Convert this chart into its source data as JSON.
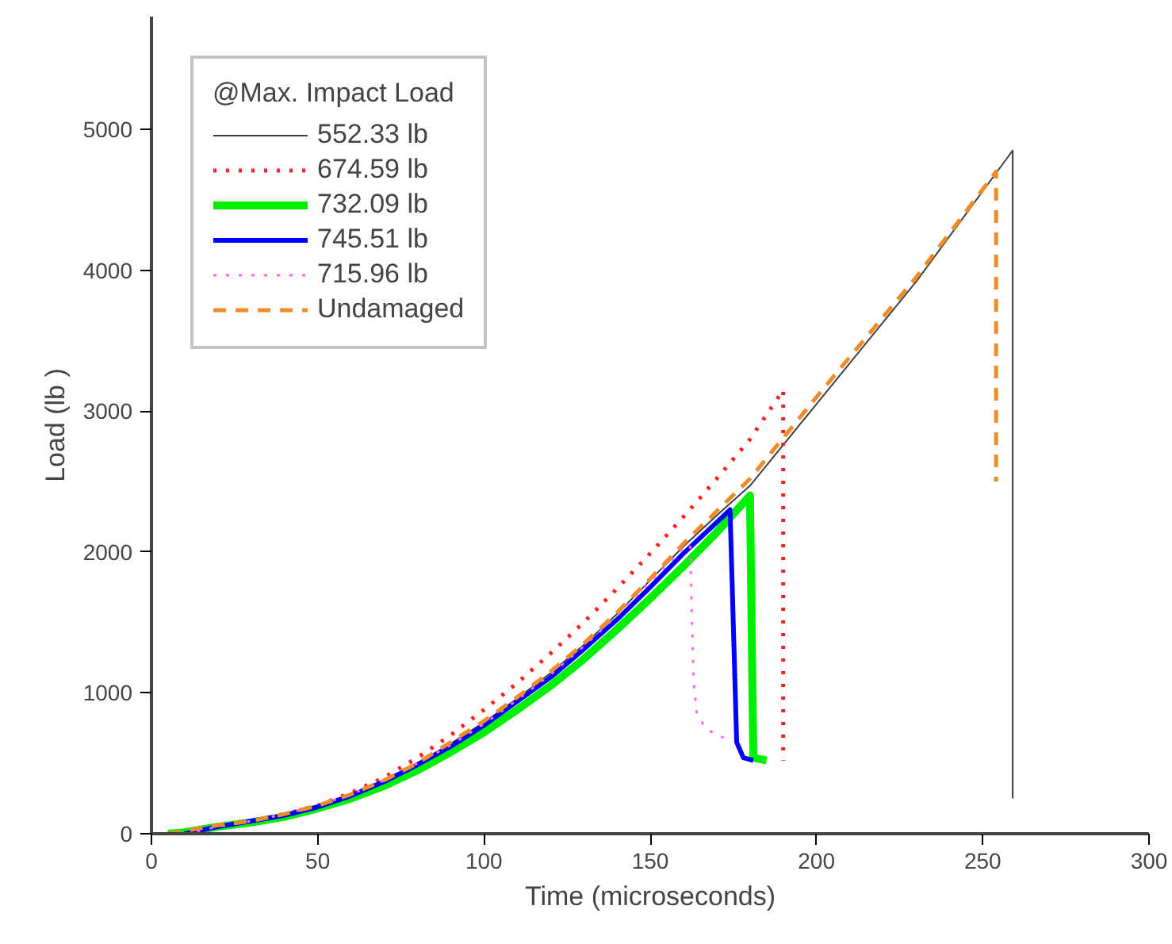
{
  "chart_data": {
    "type": "line",
    "xlabel": "Time (microseconds)",
    "ylabel": "Load (lb )",
    "legend_title": "@Max. Impact Load",
    "xlim": [
      0,
      300
    ],
    "xticks": [
      0,
      50,
      100,
      150,
      200,
      250,
      300
    ],
    "ylim": [
      0,
      5800
    ],
    "yticks": [
      0,
      1000,
      2000,
      3000,
      4000,
      5000
    ],
    "grid": false,
    "legend": "top left",
    "marker": "none",
    "series": [
      {
        "name": "552.33 lb",
        "color": "#404040",
        "line_style": "solid",
        "x": [
          5,
          10,
          20,
          30,
          40,
          50,
          60,
          70,
          80,
          90,
          100,
          110,
          120,
          130,
          140,
          150,
          160,
          170,
          180,
          200,
          230,
          259,
          259
        ],
        "values": [
          0,
          20,
          60,
          90,
          140,
          200,
          280,
          380,
          500,
          640,
          790,
          960,
          1140,
          1340,
          1560,
          1800,
          2040,
          2260,
          2470,
          3050,
          3920,
          4850,
          250
        ]
      },
      {
        "name": "674.59 lb",
        "color": "#ff2020",
        "line_style": "dotted",
        "x": [
          5,
          10,
          20,
          30,
          40,
          50,
          60,
          70,
          80,
          90,
          100,
          110,
          120,
          130,
          140,
          150,
          160,
          170,
          180,
          190,
          190
        ],
        "values": [
          0,
          20,
          60,
          90,
          140,
          200,
          290,
          400,
          540,
          700,
          880,
          1070,
          1280,
          1500,
          1740,
          1990,
          2250,
          2520,
          2800,
          3150,
          520
        ]
      },
      {
        "name": "732.09 lb",
        "color": "#00ee00",
        "line_style": "solid",
        "x": [
          5,
          10,
          20,
          30,
          40,
          50,
          60,
          70,
          80,
          90,
          100,
          110,
          120,
          130,
          140,
          150,
          160,
          170,
          180,
          181,
          185
        ],
        "values": [
          0,
          10,
          50,
          80,
          120,
          180,
          250,
          340,
          450,
          580,
          720,
          880,
          1050,
          1240,
          1450,
          1670,
          1900,
          2140,
          2400,
          540,
          520
        ]
      },
      {
        "name": "745.51 lb",
        "color": "#0000ff",
        "line_style": "solid",
        "x": [
          10,
          20,
          30,
          40,
          50,
          60,
          70,
          80,
          90,
          100,
          110,
          120,
          130,
          140,
          150,
          160,
          170,
          174,
          176,
          178,
          181
        ],
        "values": [
          0,
          50,
          90,
          130,
          190,
          270,
          370,
          490,
          620,
          770,
          940,
          1110,
          1310,
          1520,
          1750,
          1990,
          2210,
          2300,
          650,
          540,
          520
        ]
      },
      {
        "name": "715.96 lb",
        "color": "#ff66ff",
        "line_style": "dotted",
        "x": [
          10,
          20,
          30,
          40,
          50,
          60,
          70,
          80,
          90,
          100,
          110,
          120,
          130,
          140,
          150,
          160,
          162,
          163,
          164,
          167,
          173
        ],
        "values": [
          0,
          50,
          90,
          140,
          200,
          280,
          380,
          500,
          630,
          780,
          950,
          1130,
          1330,
          1550,
          1790,
          2030,
          2050,
          1100,
          850,
          740,
          670
        ]
      },
      {
        "name": "Undamaged",
        "color": "#f08c28",
        "line_style": "dashed",
        "x": [
          5,
          10,
          20,
          30,
          40,
          50,
          60,
          70,
          80,
          90,
          100,
          110,
          120,
          130,
          140,
          150,
          160,
          170,
          180,
          200,
          230,
          254,
          254
        ],
        "values": [
          0,
          20,
          60,
          90,
          140,
          200,
          280,
          380,
          500,
          650,
          800,
          970,
          1150,
          1350,
          1570,
          1810,
          2060,
          2290,
          2520,
          3100,
          3950,
          4700,
          2500
        ]
      }
    ]
  }
}
